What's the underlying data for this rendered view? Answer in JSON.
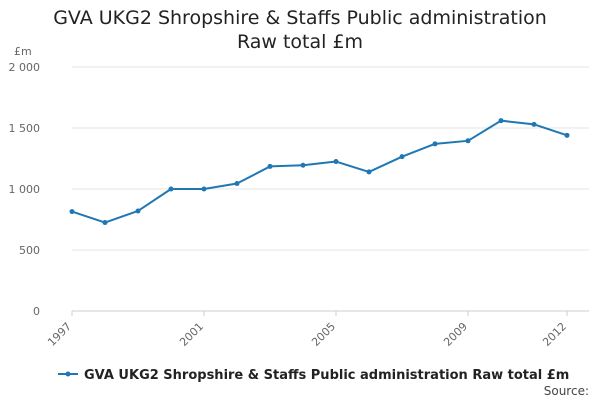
{
  "chart_data": {
    "type": "line",
    "title": "GVA UKG2 Shropshire & Staffs Public administration Raw total £m",
    "ylabel": "£m",
    "xlabel": "",
    "x": [
      1997,
      1998,
      1999,
      2000,
      2001,
      2002,
      2003,
      2004,
      2005,
      2006,
      2007,
      2008,
      2009,
      2010,
      2011,
      2012
    ],
    "x_tick_labels": [
      "1997",
      "2001",
      "2005",
      "2009",
      "2012"
    ],
    "x_tick_values": [
      1997,
      2001,
      2005,
      2009,
      2012
    ],
    "y_tick_labels": [
      "0",
      "500",
      "1 000",
      "1 500",
      "2 000"
    ],
    "y_tick_values": [
      0,
      500,
      1000,
      1500,
      2000
    ],
    "ylim": [
      0,
      2000
    ],
    "xlim": [
      1997,
      2012
    ],
    "grid": true,
    "legend_position": "bottom",
    "series": [
      {
        "name": "GVA UKG2 Shropshire & Staffs Public administration Raw total £m",
        "color": "#1f78b4",
        "values": [
          815,
          725,
          820,
          1000,
          1000,
          1045,
          1185,
          1195,
          1225,
          1140,
          1265,
          1370,
          1395,
          1560,
          1530,
          1440
        ]
      }
    ],
    "source_label": "Source:"
  }
}
